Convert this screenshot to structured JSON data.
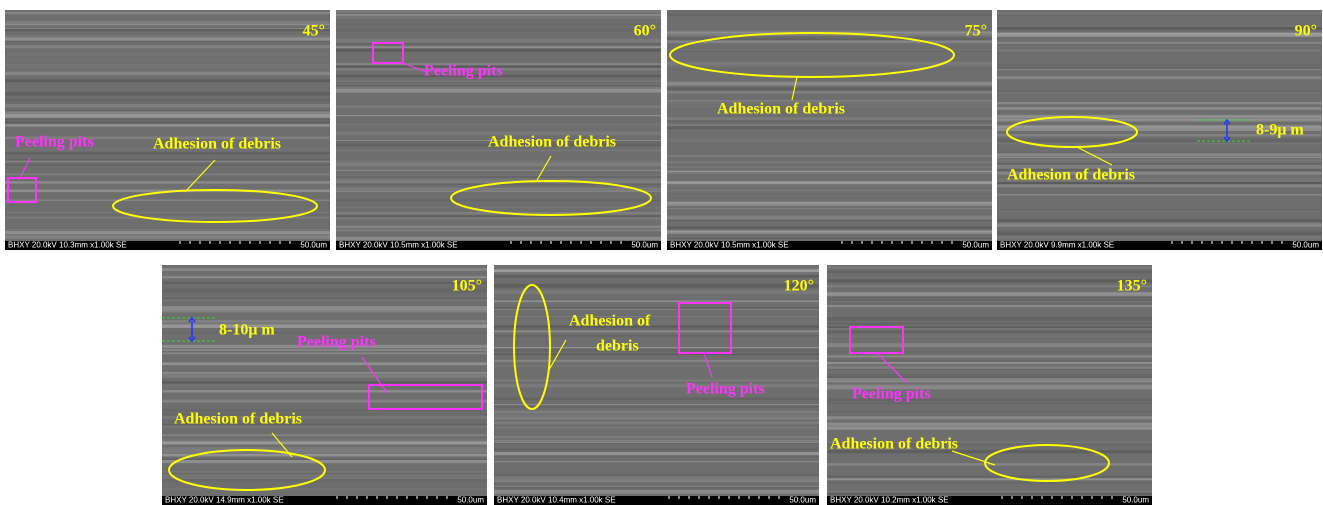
{
  "panels": [
    {
      "angle": "45°",
      "info": "BHXY 20.0kV 10.3mm x1.00k SE",
      "scale": "50.0um",
      "labels": [
        "Peeling pits",
        "Adhesion of debris"
      ]
    },
    {
      "angle": "60°",
      "info": "BHXY 20.0kV 10.5mm x1.00k SE",
      "scale": "50.0um",
      "labels": [
        "Peeling pits",
        "Adhesion of debris"
      ]
    },
    {
      "angle": "75°",
      "info": "BHXY 20.0kV 10.5mm x1.00k SE",
      "scale": "50.0um",
      "labels": [
        "Adhesion of debris"
      ]
    },
    {
      "angle": "90°",
      "info": "BHXY 20.0kV 9.9mm x1.00k SE",
      "scale": "50.0um",
      "labels": [
        "Adhesion of debris",
        "8-9μ m"
      ]
    },
    {
      "angle": "105°",
      "info": "BHXY 20.0kV 14.9mm x1.00k SE",
      "scale": "50.0um",
      "labels": [
        "8-10μ m",
        "Peeling pits",
        "Adhesion of debris"
      ]
    },
    {
      "angle": "120°",
      "info": "BHXY 20.0kV 10.4mm x1.00k SE",
      "scale": "50.0um",
      "labels": [
        "Adhesion of",
        "debris",
        "Peeling pits"
      ]
    },
    {
      "angle": "135°",
      "info": "BHXY 20.0kV 10.2mm x1.00k SE",
      "scale": "50.0um",
      "labels": [
        "Peeling pits",
        "Adhesion of debris"
      ]
    }
  ]
}
